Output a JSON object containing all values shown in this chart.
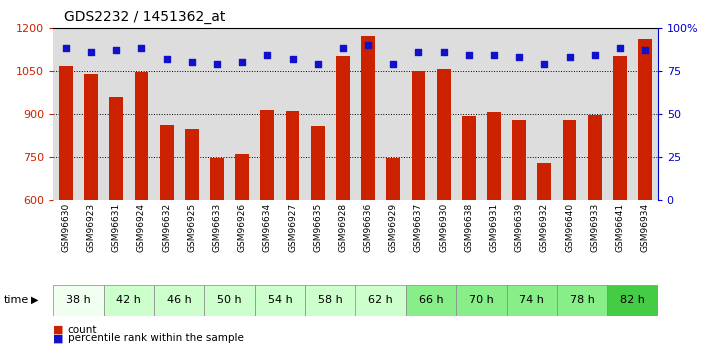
{
  "title": "GDS2232 / 1451362_at",
  "samples": [
    "GSM96630",
    "GSM96923",
    "GSM96631",
    "GSM96924",
    "GSM96632",
    "GSM96925",
    "GSM96633",
    "GSM96926",
    "GSM96634",
    "GSM96927",
    "GSM96635",
    "GSM96928",
    "GSM96636",
    "GSM96929",
    "GSM96637",
    "GSM96930",
    "GSM96638",
    "GSM96931",
    "GSM96639",
    "GSM96932",
    "GSM96640",
    "GSM96933",
    "GSM96641",
    "GSM96934"
  ],
  "counts": [
    1068,
    1040,
    960,
    1045,
    860,
    848,
    748,
    760,
    915,
    910,
    858,
    1100,
    1170,
    748,
    1050,
    1055,
    893,
    905,
    880,
    730,
    880,
    895,
    1100,
    1160
  ],
  "percentiles": [
    88,
    86,
    87,
    88,
    82,
    80,
    79,
    80,
    84,
    82,
    79,
    88,
    90,
    79,
    86,
    86,
    84,
    84,
    83,
    79,
    83,
    84,
    88,
    87
  ],
  "time_groups": [
    {
      "label": "38 h",
      "indices": [
        0,
        1
      ],
      "color": "#f0fff0"
    },
    {
      "label": "42 h",
      "indices": [
        2,
        3
      ],
      "color": "#ccffcc"
    },
    {
      "label": "46 h",
      "indices": [
        4,
        5
      ],
      "color": "#ccffcc"
    },
    {
      "label": "50 h",
      "indices": [
        6,
        7
      ],
      "color": "#ccffcc"
    },
    {
      "label": "54 h",
      "indices": [
        8,
        9
      ],
      "color": "#ccffcc"
    },
    {
      "label": "58 h",
      "indices": [
        10,
        11
      ],
      "color": "#ccffcc"
    },
    {
      "label": "62 h",
      "indices": [
        12,
        13
      ],
      "color": "#ccffcc"
    },
    {
      "label": "66 h",
      "indices": [
        14,
        15
      ],
      "color": "#88ee88"
    },
    {
      "label": "70 h",
      "indices": [
        16,
        17
      ],
      "color": "#88ee88"
    },
    {
      "label": "74 h",
      "indices": [
        18,
        19
      ],
      "color": "#88ee88"
    },
    {
      "label": "78 h",
      "indices": [
        20,
        21
      ],
      "color": "#88ee88"
    },
    {
      "label": "82 h",
      "indices": [
        22,
        23
      ],
      "color": "#44cc44"
    }
  ],
  "ylim_left": [
    600,
    1200
  ],
  "ylim_right": [
    0,
    100
  ],
  "yticks_left": [
    600,
    750,
    900,
    1050,
    1200
  ],
  "yticks_right": [
    0,
    25,
    50,
    75,
    100
  ],
  "bar_color": "#cc2200",
  "dot_color": "#1111cc",
  "bar_width": 0.55,
  "plot_bg_color": "#dddddd",
  "xlabel_color": "#cc2200",
  "ylabel_right_color": "#0000cc",
  "sample_bg_color": "#cccccc"
}
